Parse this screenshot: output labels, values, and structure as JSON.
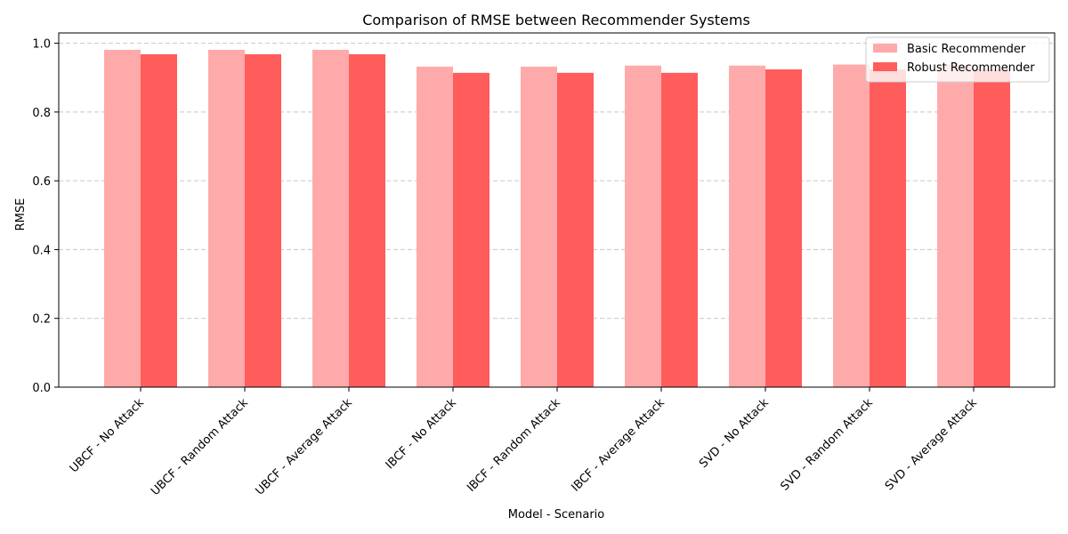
{
  "chart_data": {
    "type": "bar",
    "title": "Comparison of RMSE between Recommender Systems",
    "xlabel": "Model - Scenario",
    "ylabel": "RMSE",
    "categories": [
      "UBCF - No Attack",
      "UBCF - Random Attack",
      "UBCF - Average Attack",
      "IBCF - No Attack",
      "IBCF - Random Attack",
      "IBCF - Average Attack",
      "SVD - No Attack",
      "SVD - Random Attack",
      "SVD - Average Attack"
    ],
    "series": [
      {
        "name": "Basic Recommender",
        "color": "#ffaaaa",
        "values": [
          0.981,
          0.981,
          0.981,
          0.932,
          0.932,
          0.935,
          0.935,
          0.938,
          0.938
        ]
      },
      {
        "name": "Robust Recommender",
        "color": "#ff5c5c",
        "values": [
          0.968,
          0.968,
          0.968,
          0.914,
          0.914,
          0.914,
          0.924,
          0.924,
          0.924
        ]
      }
    ],
    "ylim": [
      0,
      1.03
    ],
    "yticks": [
      "0.0",
      "0.2",
      "0.4",
      "0.6",
      "0.8",
      "1.0"
    ],
    "grid": "horizontal-dashed",
    "legend_position": "top-right"
  }
}
